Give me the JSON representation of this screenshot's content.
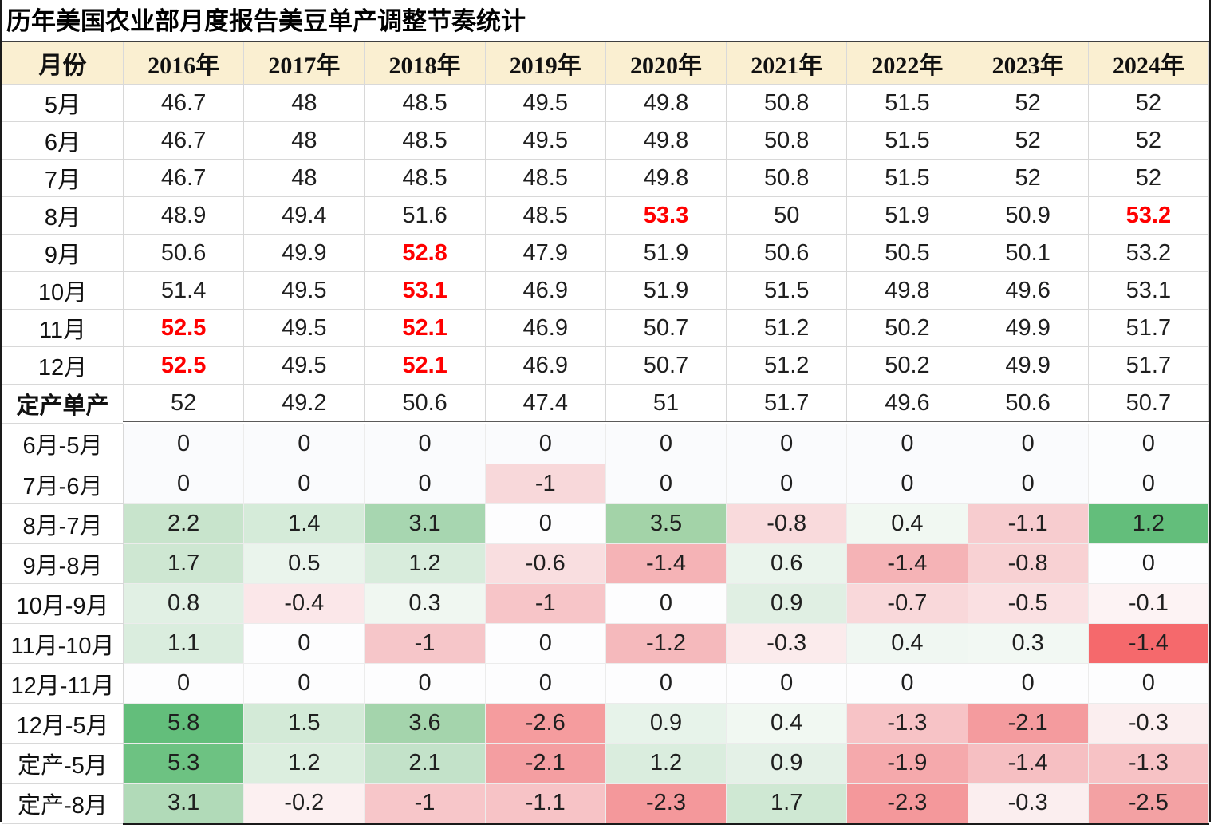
{
  "title": "历年美国农业部月度报告美豆单产调整节奏统计",
  "table": {
    "month_header": "月份",
    "years": [
      "2016年",
      "2017年",
      "2018年",
      "2019年",
      "2020年",
      "2021年",
      "2022年",
      "2023年",
      "2024年"
    ],
    "yield_rows": [
      {
        "label": "5月",
        "values": [
          "46.7",
          "48",
          "48.5",
          "49.5",
          "49.8",
          "50.8",
          "51.5",
          "52",
          "52"
        ],
        "red": [
          0,
          0,
          0,
          0,
          0,
          0,
          0,
          0,
          0
        ]
      },
      {
        "label": "6月",
        "values": [
          "46.7",
          "48",
          "48.5",
          "49.5",
          "49.8",
          "50.8",
          "51.5",
          "52",
          "52"
        ],
        "red": [
          0,
          0,
          0,
          0,
          0,
          0,
          0,
          0,
          0
        ]
      },
      {
        "label": "7月",
        "values": [
          "46.7",
          "48",
          "48.5",
          "48.5",
          "49.8",
          "50.8",
          "51.5",
          "52",
          "52"
        ],
        "red": [
          0,
          0,
          0,
          0,
          0,
          0,
          0,
          0,
          0
        ]
      },
      {
        "label": "8月",
        "values": [
          "48.9",
          "49.4",
          "51.6",
          "48.5",
          "53.3",
          "50",
          "51.9",
          "50.9",
          "53.2"
        ],
        "red": [
          0,
          0,
          0,
          0,
          1,
          0,
          0,
          0,
          1
        ]
      },
      {
        "label": "9月",
        "values": [
          "50.6",
          "49.9",
          "52.8",
          "47.9",
          "51.9",
          "50.6",
          "50.5",
          "50.1",
          "53.2"
        ],
        "red": [
          0,
          0,
          1,
          0,
          0,
          0,
          0,
          0,
          0
        ]
      },
      {
        "label": "10月",
        "values": [
          "51.4",
          "49.5",
          "53.1",
          "46.9",
          "51.9",
          "51.5",
          "49.8",
          "49.6",
          "53.1"
        ],
        "red": [
          0,
          0,
          1,
          0,
          0,
          0,
          0,
          0,
          0
        ]
      },
      {
        "label": "11月",
        "values": [
          "52.5",
          "49.5",
          "52.1",
          "46.9",
          "50.7",
          "51.2",
          "50.2",
          "49.9",
          "51.7"
        ],
        "red": [
          1,
          0,
          1,
          0,
          0,
          0,
          0,
          0,
          0
        ]
      },
      {
        "label": "12月",
        "values": [
          "52.5",
          "49.5",
          "52.1",
          "46.9",
          "50.7",
          "51.2",
          "50.2",
          "49.9",
          "51.7"
        ],
        "red": [
          1,
          0,
          1,
          0,
          0,
          0,
          0,
          0,
          0
        ]
      },
      {
        "label": "定产单产",
        "bold": true,
        "values": [
          "52",
          "49.2",
          "50.6",
          "47.4",
          "51",
          "51.7",
          "49.6",
          "50.6",
          "50.7"
        ],
        "red": [
          0,
          0,
          0,
          0,
          0,
          0,
          0,
          0,
          0
        ]
      }
    ],
    "diff_rows": [
      {
        "label": "6月-5月",
        "values": [
          "0",
          "0",
          "0",
          "0",
          "0",
          "0",
          "0",
          "0",
          "0"
        ],
        "colors": [
          "#FAFBFD",
          "#FAFBFD",
          "#FAFBFD",
          "#FAFBFD",
          "#FAFBFD",
          "#FAFBFD",
          "#FAFBFD",
          "#FAFBFD",
          "#FCFDFE"
        ]
      },
      {
        "label": "7月-6月",
        "values": [
          "0",
          "0",
          "0",
          "-1",
          "0",
          "0",
          "0",
          "0",
          "0"
        ],
        "colors": [
          "#FAFBFD",
          "#FAFBFD",
          "#FAFBFD",
          "#F8D8DA",
          "#FAFBFD",
          "#FAFBFD",
          "#FAFBFD",
          "#FAFBFD",
          "#FCFDFE"
        ]
      },
      {
        "label": "8月-7月",
        "values": [
          "2.2",
          "1.4",
          "3.1",
          "0",
          "3.5",
          "-0.8",
          "0.4",
          "-1.1",
          "1.2"
        ],
        "colors": [
          "#C8E4CC",
          "#D5EBD9",
          "#A7D6B0",
          "#FDFDFE",
          "#A3D3A8",
          "#F9DADC",
          "#F1F8F2",
          "#F7CCCF",
          "#63BE7B"
        ]
      },
      {
        "label": "9月-8月",
        "values": [
          "1.7",
          "0.5",
          "1.2",
          "-0.6",
          "-1.4",
          "0.6",
          "-1.4",
          "-0.8",
          "0"
        ],
        "colors": [
          "#CEE7D2",
          "#EAF4EC",
          "#D8ECDC",
          "#F9DEE0",
          "#F5B3B6",
          "#EAF4EC",
          "#F5B3B6",
          "#F8D1D3",
          "#FDFDFE"
        ]
      },
      {
        "label": "10月-9月",
        "values": [
          "0.8",
          "-0.4",
          "0.3",
          "-1",
          "0",
          "0.9",
          "-0.7",
          "-0.5",
          "-0.1"
        ],
        "colors": [
          "#E1F0E4",
          "#FBE7E9",
          "#F0F7F1",
          "#F7C5C8",
          "#FDFDFE",
          "#E0EFE3",
          "#F9D8DA",
          "#FAE0E2",
          "#FDF3F4"
        ]
      },
      {
        "label": "11月-10月",
        "values": [
          "1.1",
          "0",
          "-1",
          "0",
          "-1.2",
          "-0.3",
          "0.4",
          "0.3",
          "-1.4"
        ],
        "colors": [
          "#DAEDDE",
          "#FDFDFE",
          "#F6C6C9",
          "#FDFDFE",
          "#F5B9BC",
          "#FBEBEC",
          "#F0F7F2",
          "#F2F8F3",
          "#F5696C"
        ]
      },
      {
        "label": "12月-11月",
        "values": [
          "0",
          "0",
          "0",
          "0",
          "0",
          "0",
          "0",
          "0",
          "0"
        ],
        "colors": [
          "#FDFDFE",
          "#FDFDFE",
          "#FDFDFE",
          "#FDFDFE",
          "#FDFDFE",
          "#FDFDFE",
          "#FDFDFE",
          "#FDFDFE",
          "#FDFDFE"
        ]
      },
      {
        "label": "12月-5月",
        "values": [
          "5.8",
          "1.5",
          "3.6",
          "-2.6",
          "0.9",
          "0.4",
          "-1.3",
          "-2.1",
          "-0.3"
        ],
        "colors": [
          "#63BE7B",
          "#D3EAD7",
          "#A4D4AC",
          "#F59C9E",
          "#E7F3EA",
          "#F1F8F2",
          "#F7C3C6",
          "#F49B9E",
          "#FBEEEF"
        ]
      },
      {
        "label": "定产-5月",
        "values": [
          "5.3",
          "1.2",
          "2.1",
          "-2.1",
          "1.2",
          "0.9",
          "-1.9",
          "-1.4",
          "-1.3"
        ],
        "colors": [
          "#6DC282",
          "#DCEEDF",
          "#C3E2C9",
          "#F49EA1",
          "#DAEDDE",
          "#E4F1E7",
          "#F5A9AC",
          "#F6BFC2",
          "#F7C2C5"
        ]
      },
      {
        "label": "定产-8月",
        "values": [
          "3.1",
          "-0.2",
          "-1",
          "-1.1",
          "-2.3",
          "1.7",
          "-2.3",
          "-0.3",
          "-2.5"
        ],
        "colors": [
          "#B1DAB8",
          "#FCF0F1",
          "#F7C6C9",
          "#F7C3C6",
          "#F4989B",
          "#CFE8D3",
          "#F4989B",
          "#FBEEEF",
          "#F3A1A3"
        ]
      }
    ]
  },
  "style_tokens": {
    "header_bg": "#FAEFD1",
    "highlight_text_red": "#FF0000",
    "scale_green_max": "#63BE7B",
    "scale_red_max": "#F5696C",
    "scale_neutral": "#FCFCFF"
  }
}
